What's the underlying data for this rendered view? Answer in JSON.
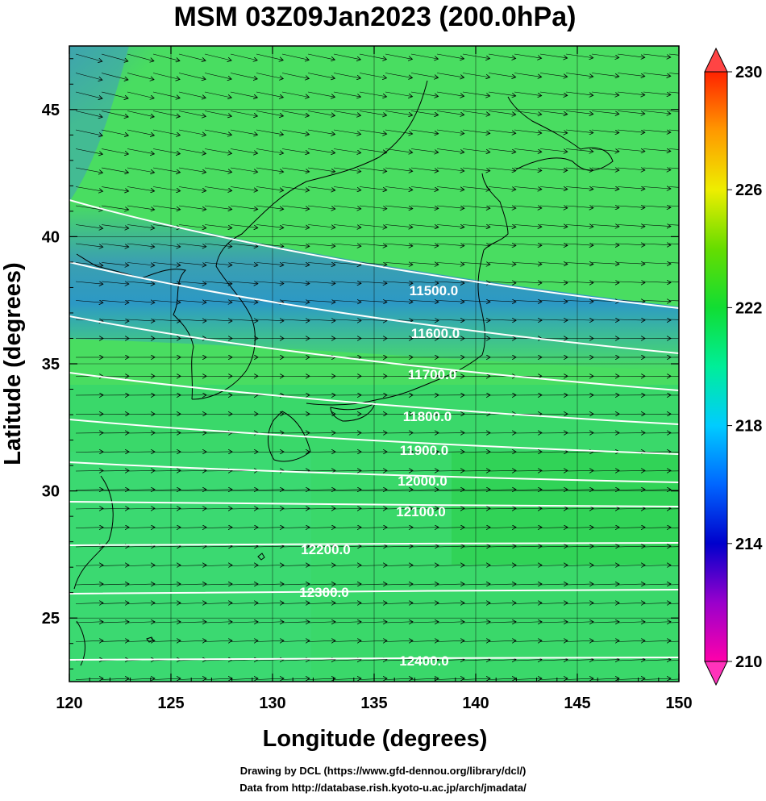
{
  "title": "MSM 03Z09Jan2023 (200.0hPa)",
  "axes": {
    "xlabel": "Longitude (degrees)",
    "ylabel": "Latitude  (degrees)",
    "xticks": [
      "120",
      "125",
      "130",
      "135",
      "140",
      "145",
      "150"
    ],
    "yticks": [
      "25",
      "30",
      "35",
      "40",
      "45"
    ],
    "xlim": [
      120,
      150
    ],
    "ylim": [
      22.5,
      47.5
    ]
  },
  "colorbar": {
    "labels": [
      "230",
      "226",
      "222",
      "218",
      "214",
      "210"
    ],
    "range": [
      210,
      230
    ],
    "colors": [
      "#ff00aa",
      "#9900cc",
      "#0000cc",
      "#0066ff",
      "#00ccff",
      "#00ee99",
      "#11dd33",
      "#66dd00",
      "#eeee00",
      "#ff9900",
      "#ff2200"
    ]
  },
  "contours": [
    {
      "label": "11500.0"
    },
    {
      "label": "11600.0"
    },
    {
      "label": "11700.0"
    },
    {
      "label": "11800.0"
    },
    {
      "label": "11900.0"
    },
    {
      "label": "12000.0"
    },
    {
      "label": "12100.0"
    },
    {
      "label": "12200.0"
    },
    {
      "label": "12300.0"
    },
    {
      "label": "12400.0"
    }
  ],
  "footer": {
    "line1": "Drawing by DCL (https://www.gfd-dennou.org/library/dcl/)",
    "line2": "Data from http://database.rish.kyoto-u.ac.jp/arch/jmadata/"
  }
}
